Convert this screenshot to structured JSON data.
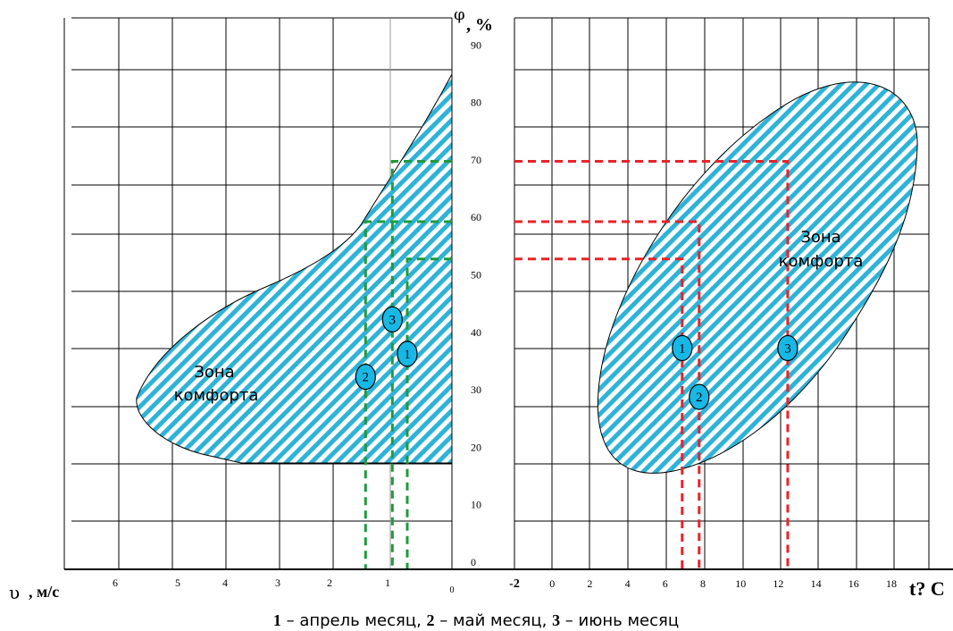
{
  "chart_data": [
    {
      "type": "area",
      "xlabel_symbol": "υ",
      "xlabel_unit": ", м/с",
      "ylabel_symbol": "φ",
      "ylabel_unit": ", %",
      "x_ticks": [
        "6",
        "5",
        "4",
        "3",
        "2",
        "1",
        "0"
      ],
      "y_ticks": [
        "0",
        "10",
        "20",
        "30",
        "40",
        "50",
        "60",
        "70",
        "80",
        "90"
      ],
      "xlim": [
        6.5,
        0
      ],
      "ylim": [
        0,
        100
      ],
      "zone_label": [
        "Зона",
        "комфорта"
      ],
      "zone_color": "#2eb3d8",
      "guide_color": "#1f9a3c",
      "points": [
        {
          "label": "1",
          "x": 0.75,
          "y": 37.5
        },
        {
          "label": "2",
          "x": 1.45,
          "y": 33.5
        },
        {
          "label": "3",
          "x": 1.0,
          "y": 43.5
        }
      ],
      "guides": [
        {
          "x": 0.75,
          "y": 54
        },
        {
          "x": 1.45,
          "y": 60.5
        },
        {
          "x": 1.0,
          "y": 71
        }
      ]
    },
    {
      "type": "area",
      "xlabel": "t? C",
      "x_ticks": [
        "-2",
        "0",
        "2",
        "4",
        "6",
        "8",
        "10",
        "12",
        "14",
        "16",
        "18"
      ],
      "xlim": [
        -2,
        20
      ],
      "ylim": [
        0,
        100
      ],
      "zone_label": [
        "Зона",
        "комфорта"
      ],
      "zone_color": "#2eb3d8",
      "guide_color": "#e8232a",
      "points": [
        {
          "label": "1",
          "x": 6.9,
          "y": 38.5
        },
        {
          "label": "2",
          "x": 7.8,
          "y": 30
        },
        {
          "label": "3",
          "x": 12.5,
          "y": 38.5
        }
      ],
      "guides": [
        {
          "x": 6.9,
          "y": 54
        },
        {
          "x": 7.8,
          "y": 60.5
        },
        {
          "x": 12.5,
          "y": 71
        }
      ]
    }
  ],
  "caption": {
    "n1": "1",
    "t1": " – апрель месяц, ",
    "n2": "2",
    "t2": " – май месяц, ",
    "n3": "3",
    "t3": " – июнь месяц"
  }
}
